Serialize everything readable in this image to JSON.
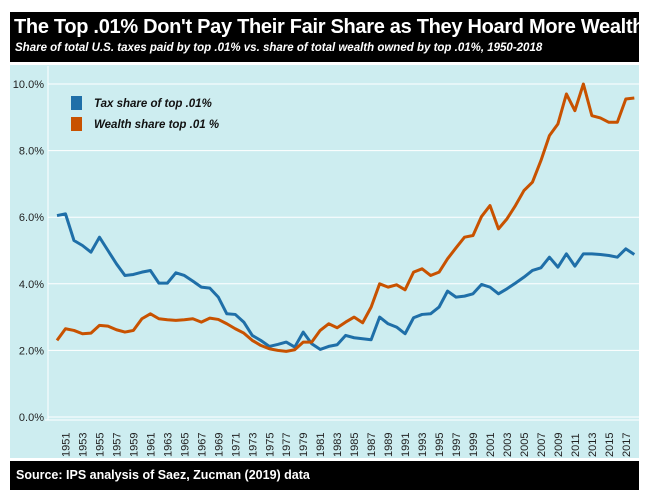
{
  "header": {
    "title": "The Top .01% Don't Pay Their Fair Share as They Hoard More Wealth",
    "subtitle": "Share of total U.S. taxes paid by top .01% vs. share of total wealth owned by top .01%, 1950-2018"
  },
  "footer": {
    "source": "Source: IPS analysis of Saez, Zucman (2019) data"
  },
  "chart_data": {
    "type": "line",
    "title": "The Top .01% Don't Pay Their Fair Share as They Hoard More Wealth",
    "ylim": [
      0,
      10
    ],
    "yticks": [
      "0.0%",
      "2.0%",
      "4.0%",
      "6.0%",
      "8.0%",
      "10.0%"
    ],
    "xstart": 1950,
    "xticks": [
      "1951",
      "1953",
      "1955",
      "1957",
      "1959",
      "1961",
      "1963",
      "1965",
      "1967",
      "1969",
      "1971",
      "1973",
      "1975",
      "1977",
      "1979",
      "1981",
      "1983",
      "1985",
      "1987",
      "1989",
      "1991",
      "1993",
      "1995",
      "1997",
      "1999",
      "2001",
      "2003",
      "2005",
      "2007",
      "2009",
      "2011",
      "2013",
      "2015",
      "2017"
    ],
    "legend_position": "top-left",
    "series": [
      {
        "name": "Tax share of top .01%",
        "color": "#1f6fa8",
        "values": [
          6.05,
          6.1,
          5.3,
          5.15,
          4.95,
          5.4,
          5.0,
          4.6,
          4.25,
          4.28,
          4.35,
          4.4,
          4.02,
          4.02,
          4.33,
          4.25,
          4.08,
          3.9,
          3.87,
          3.6,
          3.1,
          3.08,
          2.85,
          2.45,
          2.3,
          2.12,
          2.18,
          2.25,
          2.1,
          2.55,
          2.2,
          2.03,
          2.12,
          2.17,
          2.45,
          2.38,
          2.35,
          2.32,
          3.0,
          2.8,
          2.7,
          2.5,
          2.98,
          3.08,
          3.1,
          3.3,
          3.78,
          3.6,
          3.63,
          3.7,
          3.98,
          3.9,
          3.7,
          3.85,
          4.02,
          4.2,
          4.4,
          4.48,
          4.8,
          4.5,
          4.9,
          4.53,
          4.9,
          4.9,
          4.88,
          4.85,
          4.8,
          5.05,
          4.88
        ]
      },
      {
        "name": "Wealth share top .01 %",
        "color": "#c85200",
        "values": [
          2.3,
          2.65,
          2.6,
          2.5,
          2.52,
          2.75,
          2.73,
          2.62,
          2.55,
          2.6,
          2.95,
          3.1,
          2.95,
          2.92,
          2.9,
          2.92,
          2.95,
          2.85,
          2.97,
          2.93,
          2.8,
          2.65,
          2.52,
          2.3,
          2.15,
          2.05,
          2.0,
          1.97,
          2.02,
          2.25,
          2.25,
          2.6,
          2.8,
          2.68,
          2.85,
          3.0,
          2.83,
          3.3,
          4.0,
          3.9,
          3.97,
          3.82,
          4.35,
          4.45,
          4.25,
          4.35,
          4.75,
          5.08,
          5.4,
          5.45,
          6.02,
          6.35,
          5.65,
          5.95,
          6.35,
          6.8,
          7.05,
          7.7,
          8.45,
          8.8,
          9.7,
          9.2,
          10.0,
          9.05,
          8.98,
          8.85,
          8.85,
          9.55,
          9.58
        ]
      }
    ]
  }
}
